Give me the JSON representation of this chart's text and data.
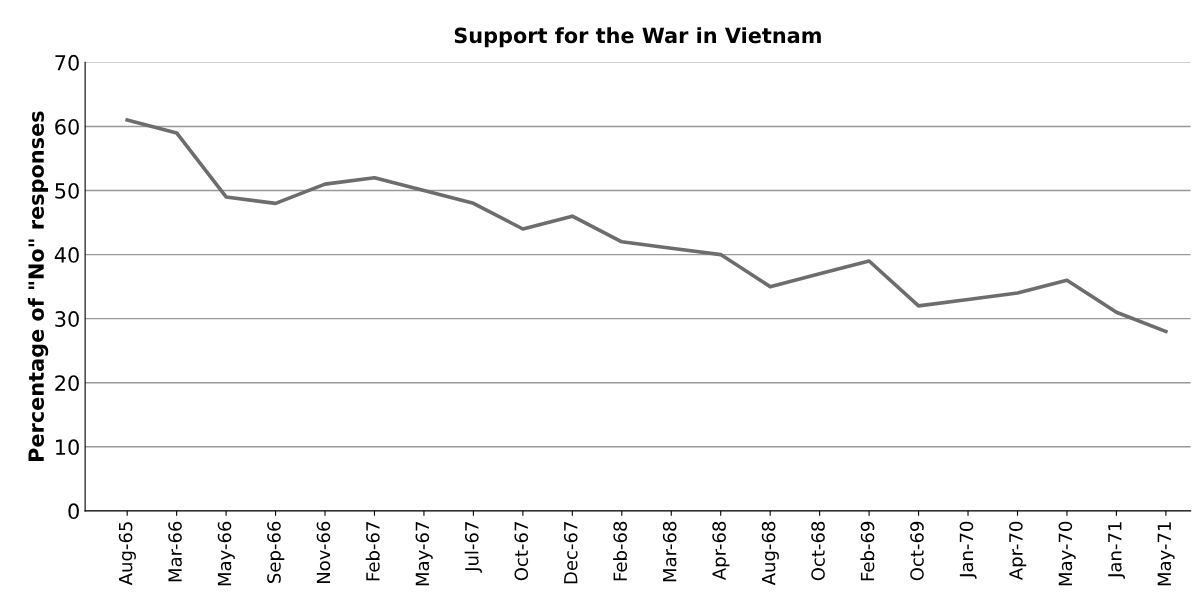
{
  "chart_data": {
    "type": "line",
    "title": "Support for the War in Vietnam",
    "ylabel": "Percentage of \"No\" responses",
    "categories": [
      "Aug-65",
      "Mar-66",
      "May-66",
      "Sep-66",
      "Nov-66",
      "Feb-67",
      "May-67",
      "Jul-67",
      "Oct-67",
      "Dec-67",
      "Feb-68",
      "Mar-68",
      "Apr-68",
      "Aug-68",
      "Oct-68",
      "Feb-69",
      "Oct-69",
      "Jan-70",
      "Apr-70",
      "May-70",
      "Jan-71",
      "May-71"
    ],
    "series": [
      {
        "color": "#6d6d6d",
        "values": [
          61,
          59,
          49,
          48,
          51,
          52,
          50,
          48,
          44,
          46,
          42,
          41,
          40,
          35,
          37,
          39,
          32,
          33,
          34,
          36,
          31,
          28
        ]
      }
    ],
    "ylim": [
      0,
      70
    ],
    "yticks": [
      0,
      10,
      20,
      30,
      40,
      50,
      60,
      70
    ],
    "grid": "y",
    "marker": "none",
    "line_style": "solid"
  }
}
